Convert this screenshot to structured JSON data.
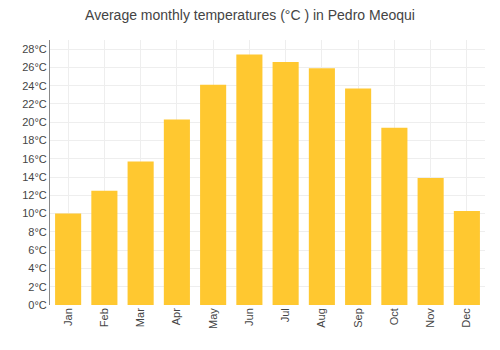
{
  "chart_data": {
    "type": "bar",
    "title": "Average monthly temperatures (°C ) in Pedro Meoqui",
    "categories": [
      "Jan",
      "Feb",
      "Mar",
      "Apr",
      "May",
      "Jun",
      "Jul",
      "Aug",
      "Sep",
      "Oct",
      "Nov",
      "Dec"
    ],
    "values": [
      10.0,
      12.5,
      15.7,
      20.3,
      24.1,
      27.4,
      26.6,
      25.9,
      23.7,
      19.4,
      13.9,
      10.3
    ],
    "color": "#FFC830",
    "ylim": [
      0,
      29
    ],
    "yticks": [
      {
        "value": 0,
        "label": "0°C"
      },
      {
        "value": 2,
        "label": "2°C"
      },
      {
        "value": 4,
        "label": "4°C"
      },
      {
        "value": 6,
        "label": "6°C"
      },
      {
        "value": 8,
        "label": "8°C"
      },
      {
        "value": 10,
        "label": "10°C"
      },
      {
        "value": 12,
        "label": "12°C"
      },
      {
        "value": 14,
        "label": "14°C"
      },
      {
        "value": 16,
        "label": "16°C"
      },
      {
        "value": 18,
        "label": "18°C"
      },
      {
        "value": 20,
        "label": "20°C"
      },
      {
        "value": 22,
        "label": "22°C"
      },
      {
        "value": 24,
        "label": "24°C"
      },
      {
        "value": 26,
        "label": "26°C"
      },
      {
        "value": 28,
        "label": "28°C"
      }
    ],
    "grid": true
  }
}
